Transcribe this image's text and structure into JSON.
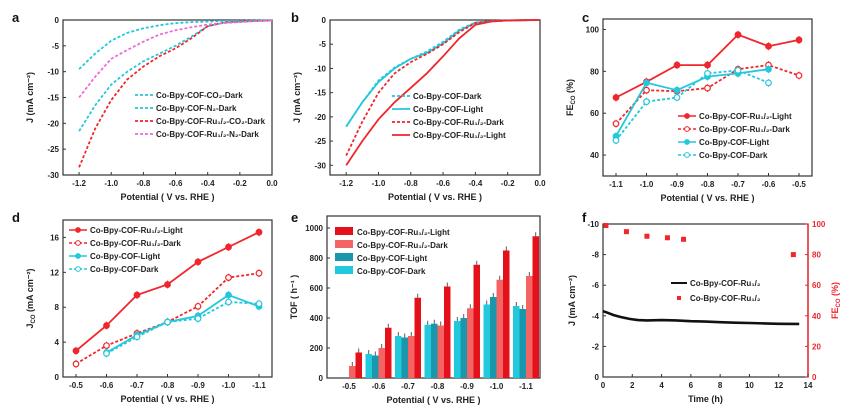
{
  "figure": {
    "panels": [
      "a",
      "b",
      "c",
      "d",
      "e",
      "f"
    ]
  },
  "colors": {
    "cyan": "#22c8dc",
    "red": "#f0262c",
    "pink": "#f06ad8",
    "teal": "#1b97ad",
    "light_red": "#f56464",
    "dark_red": "#e4101a",
    "black": "#111111"
  },
  "chart_data": [
    {
      "panel": "a",
      "type": "line",
      "xlabel": "Potential ( V vs. RHE )",
      "ylabel": "J (mA cm⁻²)",
      "xlim": [
        -1.3,
        0.0
      ],
      "ylim": [
        -30,
        0
      ],
      "xticks": [
        "-1.2",
        "-1.0",
        "-0.8",
        "-0.6",
        "-0.4",
        "-0.2",
        "0.0"
      ],
      "xtick_values": [
        -1.2,
        -1.0,
        -0.8,
        -0.6,
        -0.4,
        -0.2,
        0.0
      ],
      "yticks": [
        "0",
        "-5",
        "-10",
        "-15",
        "-20",
        "-25",
        "-30"
      ],
      "ytick_values": [
        0,
        -5,
        -10,
        -15,
        -20,
        -25,
        -30
      ],
      "legend_position": "center-right",
      "series": [
        {
          "name": "Co-Bpy-COF-CO₂-Dark",
          "color": "cyan",
          "dash": true,
          "x": [
            -1.2,
            -1.1,
            -1.0,
            -0.9,
            -0.8,
            -0.7,
            -0.6,
            -0.5,
            -0.4,
            -0.3,
            -0.2,
            -0.1,
            0.0
          ],
          "y": [
            -21.5,
            -16.5,
            -12.5,
            -10,
            -8,
            -6.5,
            -5,
            -3.2,
            -1.2,
            -0.5,
            -0.3,
            -0.2,
            -0.1
          ]
        },
        {
          "name": "Co-Bpy-COF-N₂-Dark",
          "color": "cyan",
          "dash": true,
          "x": [
            -1.2,
            -1.1,
            -1.0,
            -0.9,
            -0.8,
            -0.7,
            -0.6,
            -0.5,
            -0.4,
            -0.3,
            -0.2,
            -0.1,
            0.0
          ],
          "y": [
            -9.5,
            -6.5,
            -4,
            -2.5,
            -1.6,
            -1.0,
            -0.6,
            -0.4,
            -0.3,
            -0.2,
            -0.15,
            -0.1,
            -0.05
          ]
        },
        {
          "name": "Co-Bpy-COF-Ru₁/₂-CO₂-Dark",
          "color": "red",
          "dash": true,
          "x": [
            -1.2,
            -1.1,
            -1.0,
            -0.9,
            -0.8,
            -0.7,
            -0.6,
            -0.5,
            -0.4,
            -0.3,
            -0.2,
            -0.1,
            0.0
          ],
          "y": [
            -28.5,
            -21,
            -15.5,
            -11.5,
            -9,
            -7,
            -5.5,
            -3.5,
            -1.2,
            -0.5,
            -0.3,
            -0.2,
            -0.1
          ]
        },
        {
          "name": "Co-Bpy-COF-Ru₁/₂-N₂-Dark",
          "color": "pink",
          "dash": true,
          "x": [
            -1.2,
            -1.1,
            -1.0,
            -0.9,
            -0.8,
            -0.7,
            -0.6,
            -0.5,
            -0.4,
            -0.3,
            -0.2,
            -0.1,
            0.0
          ],
          "y": [
            -15,
            -11,
            -7.5,
            -5.8,
            -4.2,
            -2.8,
            -2.0,
            -1.4,
            -0.9,
            -0.6,
            -0.4,
            -0.2,
            -0.1
          ]
        }
      ]
    },
    {
      "panel": "b",
      "type": "line",
      "xlabel": "Potential ( V vs. RHE )",
      "ylabel": "J (mA cm⁻²)",
      "xlim": [
        -1.3,
        0.0
      ],
      "ylim": [
        -32,
        0
      ],
      "xticks": [
        "-1.2",
        "-1.0",
        "-0.8",
        "-0.6",
        "-0.4",
        "-0.2",
        "0.0"
      ],
      "xtick_values": [
        -1.2,
        -1.0,
        -0.8,
        -0.6,
        -0.4,
        -0.2,
        0.0
      ],
      "yticks": [
        "0",
        "-5",
        "-10",
        "-15",
        "-20",
        "-25",
        "-30"
      ],
      "ytick_values": [
        0,
        -5,
        -10,
        -15,
        -20,
        -25,
        -30
      ],
      "legend_position": "center-right",
      "series": [
        {
          "name": "Co-Bpy-COF-Dark",
          "color": "cyan",
          "dash": true,
          "x": [
            -1.2,
            -1.1,
            -1.0,
            -0.9,
            -0.8,
            -0.7,
            -0.6,
            -0.5,
            -0.4,
            -0.3,
            -0.2,
            -0.1,
            0.0
          ],
          "y": [
            -22,
            -17,
            -12.5,
            -9.8,
            -8,
            -6.5,
            -4.5,
            -2.0,
            -0.5,
            -0.2,
            -0.1,
            -0.05,
            0
          ]
        },
        {
          "name": "Co-Bpy-COF-Light",
          "color": "cyan",
          "dash": false,
          "x": [
            -1.2,
            -1.1,
            -1.0,
            -0.9,
            -0.8,
            -0.7,
            -0.6,
            -0.5,
            -0.4,
            -0.3,
            -0.2,
            -0.1,
            0.0
          ],
          "y": [
            -22,
            -17,
            -12.8,
            -10,
            -8,
            -6.8,
            -4.8,
            -2.2,
            -0.6,
            -0.2,
            -0.1,
            -0.05,
            0
          ]
        },
        {
          "name": "Co-Bpy-COF-Ru₁/₂-Dark",
          "color": "red",
          "dash": true,
          "x": [
            -1.2,
            -1.1,
            -1.0,
            -0.9,
            -0.8,
            -0.7,
            -0.6,
            -0.5,
            -0.4,
            -0.3,
            -0.2,
            -0.1,
            0.0
          ],
          "y": [
            -28,
            -21,
            -15,
            -11,
            -8.7,
            -7,
            -5,
            -2.5,
            -0.6,
            -0.2,
            -0.1,
            -0.05,
            0
          ]
        },
        {
          "name": "Co-Bpy-COF-Ru₁/₂-Light",
          "color": "red",
          "dash": false,
          "x": [
            -1.2,
            -1.1,
            -1.0,
            -0.9,
            -0.8,
            -0.7,
            -0.6,
            -0.5,
            -0.4,
            -0.3,
            -0.2,
            -0.1,
            0.0
          ],
          "y": [
            -30,
            -25,
            -20.5,
            -17,
            -14,
            -11,
            -7.5,
            -3.8,
            -1.0,
            -0.3,
            -0.1,
            -0.05,
            0
          ]
        }
      ]
    },
    {
      "panel": "c",
      "type": "line",
      "xlabel": "Potential ( V vs. RHE )",
      "ylabel": "FEₙₒ (%)",
      "ylabel_main": "FE",
      "ylabel_sub": "CO",
      "ylabel_tail": " (%)",
      "categories": [
        "-1.1",
        "-1.0",
        "-0.9",
        "-0.8",
        "-0.7",
        "-0.6",
        "-0.5"
      ],
      "ylim": [
        30,
        105
      ],
      "yticks": [
        "40",
        "60",
        "80",
        "100"
      ],
      "ytick_values": [
        40,
        60,
        80,
        100
      ],
      "legend_position": "bottom-right",
      "series": [
        {
          "name": "Co-Bpy-COF-Ru₁/₂-Light",
          "color": "red",
          "dash": false,
          "marker": "filled",
          "values": [
            67.5,
            75,
            83,
            83,
            97.5,
            92,
            95
          ]
        },
        {
          "name": "Co-Bpy-COF-Ru₁/₂-Dark",
          "color": "red",
          "dash": true,
          "marker": "open",
          "values": [
            55,
            71,
            70.5,
            72,
            81,
            83,
            78
          ]
        },
        {
          "name": "Co-Bpy-COF-Light",
          "color": "cyan",
          "dash": false,
          "marker": "filled",
          "values": [
            49,
            74.5,
            71,
            77.5,
            79,
            81,
            null
          ]
        },
        {
          "name": "Co-Bpy-COF-Dark",
          "color": "cyan",
          "dash": true,
          "marker": "open",
          "values": [
            47,
            65.5,
            67.5,
            79,
            80.5,
            74.5,
            null
          ]
        }
      ]
    },
    {
      "panel": "d",
      "type": "line",
      "xlabel": "Potential ( V vs. RHE )",
      "ylabel_main": "J",
      "ylabel_sub": "CO",
      "ylabel_tail": " (mA cm⁻²)",
      "categories": [
        "-0.5",
        "-0.6",
        "-0.7",
        "-0.8",
        "-0.9",
        "-1.0",
        "-1.1"
      ],
      "ylim": [
        0,
        18
      ],
      "yticks": [
        "0",
        "4",
        "8",
        "12",
        "16"
      ],
      "ytick_values": [
        0,
        4,
        8,
        12,
        16
      ],
      "legend_position": "top-left",
      "series": [
        {
          "name": "Co-Bpy-COF-Ru₁/₂-Light",
          "color": "red",
          "dash": false,
          "marker": "filled",
          "values": [
            3.0,
            5.9,
            9.4,
            10.6,
            13.2,
            14.9,
            16.6
          ]
        },
        {
          "name": "Co-Bpy-COF-Ru₁/₂-Dark",
          "color": "red",
          "dash": true,
          "marker": "open",
          "values": [
            1.5,
            3.6,
            5.0,
            6.3,
            8.1,
            11.4,
            11.9
          ]
        },
        {
          "name": "Co-Bpy-COF-Light",
          "color": "cyan",
          "dash": false,
          "marker": "filled",
          "values": [
            null,
            2.8,
            4.8,
            6.3,
            7.0,
            9.4,
            8.1
          ]
        },
        {
          "name": "Co-Bpy-COF-Dark",
          "color": "cyan",
          "dash": true,
          "marker": "open",
          "values": [
            null,
            2.7,
            4.6,
            6.3,
            6.7,
            8.6,
            8.4
          ]
        }
      ]
    },
    {
      "panel": "e",
      "type": "bar",
      "xlabel": "Potential ( V vs. RHE )",
      "ylabel": "TOF ( h⁻¹ )",
      "categories": [
        "-0.5",
        "-0.6",
        "-0.7",
        "-0.8",
        "-0.9",
        "-1.0",
        "-1.1"
      ],
      "ylim": [
        0,
        1080
      ],
      "yticks": [
        "0",
        "200",
        "400",
        "600",
        "800",
        "1000"
      ],
      "ytick_values": [
        0,
        200,
        400,
        600,
        800,
        1000
      ],
      "legend_position": "top-left",
      "legend_order": [
        3,
        2,
        1,
        0
      ],
      "series": [
        {
          "name": "Co-Bpy-COF-Dark",
          "color": "cyan",
          "values": [
            null,
            160,
            280,
            355,
            380,
            490,
            480
          ]
        },
        {
          "name": "Co-Bpy-COF-Light",
          "color": "teal",
          "values": [
            null,
            150,
            270,
            362,
            400,
            540,
            460
          ]
        },
        {
          "name": "Co-Bpy-COF-Ru₁/₂-Dark",
          "color": "light_red",
          "values": [
            80,
            200,
            280,
            350,
            465,
            655,
            680
          ]
        },
        {
          "name": "Co-Bpy-COF-Ru₁/₂-Light",
          "color": "dark_red",
          "values": [
            170,
            335,
            535,
            610,
            755,
            850,
            945
          ]
        }
      ]
    },
    {
      "panel": "f",
      "type": "line",
      "xlabel": "Time (h)",
      "ylabel": "J (mA cm⁻²)",
      "ylabel_right_main": "FE",
      "ylabel_right_sub": "CO",
      "ylabel_right_tail": " (%)",
      "xlim": [
        0,
        14
      ],
      "ylim": [
        0,
        -10
      ],
      "ylim_right": [
        0,
        100
      ],
      "xticks": [
        "0",
        "2",
        "4",
        "6",
        "8",
        "10",
        "12",
        "14"
      ],
      "xtick_values": [
        0,
        2,
        4,
        6,
        8,
        10,
        12,
        14
      ],
      "yticks": [
        "0",
        "-2",
        "-4",
        "-6",
        "-8",
        "-10"
      ],
      "ytick_values": [
        0,
        -2,
        -4,
        -6,
        -8,
        -10
      ],
      "yticks_right": [
        "0",
        "20",
        "40",
        "60",
        "80",
        "100"
      ],
      "ytick_values_right": [
        0,
        20,
        40,
        60,
        80,
        100
      ],
      "legend_position": "center-right",
      "series": [
        {
          "name": "Co-Bpy-COF-Ru₁/₂",
          "color": "black",
          "kind": "line",
          "axis": "left",
          "x": [
            0,
            0.3,
            0.7,
            1.2,
            1.8,
            2.4,
            3,
            4,
            5,
            6,
            7,
            8,
            9,
            10,
            11,
            12,
            13,
            13.4
          ],
          "y": [
            -4.3,
            -4.2,
            -4.05,
            -3.92,
            -3.8,
            -3.72,
            -3.7,
            -3.72,
            -3.7,
            -3.65,
            -3.62,
            -3.58,
            -3.55,
            -3.53,
            -3.5,
            -3.48,
            -3.47,
            -3.47
          ]
        },
        {
          "name": "Co-Bpy-COF-Ru₁/₂",
          "color": "red",
          "kind": "scatter",
          "axis": "right",
          "x": [
            0.2,
            1.6,
            3.0,
            4.4,
            5.5,
            13.0
          ],
          "y": [
            99,
            95,
            92,
            91,
            90,
            80
          ]
        }
      ]
    }
  ]
}
